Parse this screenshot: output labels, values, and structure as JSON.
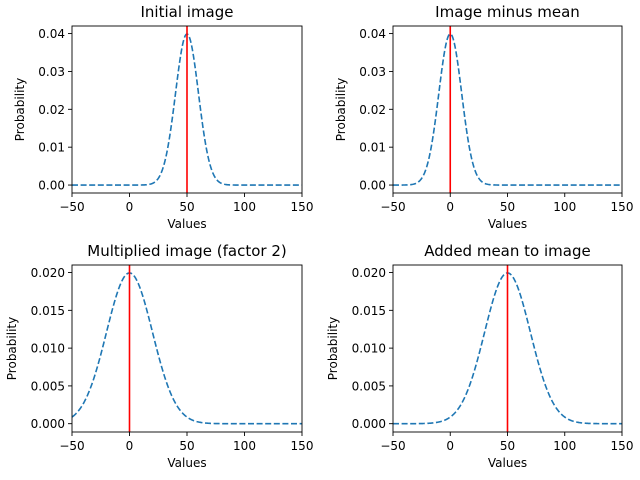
{
  "chart_data": [
    {
      "type": "line",
      "title": "Initial image",
      "xlabel": "Values",
      "ylabel": "Probability",
      "xlim": [
        -50,
        150
      ],
      "ylim": [
        -0.0021,
        0.042
      ],
      "xticks": [
        -50,
        0,
        50,
        100,
        150
      ],
      "yticks": [
        0.0,
        0.01,
        0.02,
        0.03,
        0.04
      ],
      "ytick_labels": [
        "0.00",
        "0.01",
        "0.02",
        "0.03",
        "0.04"
      ],
      "curve": {
        "kind": "gaussian",
        "mean": 50,
        "std": 10,
        "x_range": [
          -50,
          150
        ],
        "style": "dashed",
        "color": "#1f77b4"
      },
      "vline": {
        "x": 50,
        "color": "#ff0000"
      }
    },
    {
      "type": "line",
      "title": "Image minus mean",
      "xlabel": "Values",
      "ylabel": "Probability",
      "xlim": [
        -50,
        150
      ],
      "ylim": [
        -0.0021,
        0.042
      ],
      "xticks": [
        -50,
        0,
        50,
        100,
        150
      ],
      "yticks": [
        0.0,
        0.01,
        0.02,
        0.03,
        0.04
      ],
      "ytick_labels": [
        "0.00",
        "0.01",
        "0.02",
        "0.03",
        "0.04"
      ],
      "curve": {
        "kind": "gaussian",
        "mean": 0,
        "std": 10,
        "x_range": [
          -50,
          150
        ],
        "style": "dashed",
        "color": "#1f77b4"
      },
      "vline": {
        "x": 0,
        "color": "#ff0000"
      }
    },
    {
      "type": "line",
      "title": "Multiplied image (factor 2)",
      "xlabel": "Values",
      "ylabel": "Probability",
      "xlim": [
        -50,
        150
      ],
      "ylim": [
        -0.0011,
        0.021
      ],
      "xticks": [
        -50,
        0,
        50,
        100,
        150
      ],
      "yticks": [
        0.0,
        0.005,
        0.01,
        0.015,
        0.02
      ],
      "ytick_labels": [
        "0.000",
        "0.005",
        "0.010",
        "0.015",
        "0.020"
      ],
      "curve": {
        "kind": "gaussian",
        "mean": 0,
        "std": 20,
        "x_range": [
          -50,
          150
        ],
        "style": "dashed",
        "color": "#1f77b4"
      },
      "vline": {
        "x": 0,
        "color": "#ff0000"
      }
    },
    {
      "type": "line",
      "title": "Added mean to image",
      "xlabel": "Values",
      "ylabel": "Probability",
      "xlim": [
        -50,
        150
      ],
      "ylim": [
        -0.0011,
        0.021
      ],
      "xticks": [
        -50,
        0,
        50,
        100,
        150
      ],
      "yticks": [
        0.0,
        0.005,
        0.01,
        0.015,
        0.02
      ],
      "ytick_labels": [
        "0.000",
        "0.005",
        "0.010",
        "0.015",
        "0.020"
      ],
      "curve": {
        "kind": "gaussian",
        "mean": 50,
        "std": 20,
        "x_range": [
          -50,
          150
        ],
        "style": "dashed",
        "color": "#1f77b4"
      },
      "vline": {
        "x": 50,
        "color": "#ff0000"
      }
    }
  ]
}
